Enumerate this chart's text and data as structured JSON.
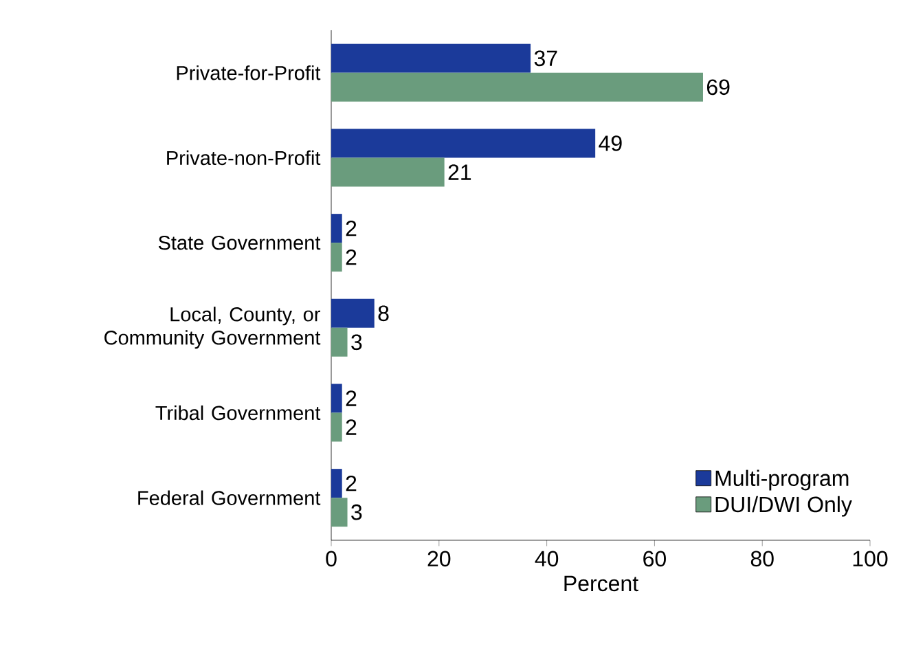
{
  "chart_data": {
    "type": "bar",
    "orientation": "horizontal",
    "xlabel": "Percent",
    "categories": [
      "Private-for-Profit",
      "Private-non-Profit",
      "State Government",
      "Local, County, or Community Government",
      "Tribal Government",
      "Federal Government"
    ],
    "series": [
      {
        "name": "Multi-program",
        "color": "#1b3a9a",
        "values": [
          37,
          49,
          2,
          8,
          2,
          2
        ]
      },
      {
        "name": "DUI/DWI Only",
        "color": "#6a9c7d",
        "values": [
          69,
          21,
          2,
          3,
          2,
          3
        ]
      }
    ],
    "xlim": [
      0,
      100
    ],
    "xticks": [
      0,
      20,
      40,
      60,
      80,
      100
    ],
    "data_labels": true,
    "legend": "bottom right",
    "grid": false
  }
}
